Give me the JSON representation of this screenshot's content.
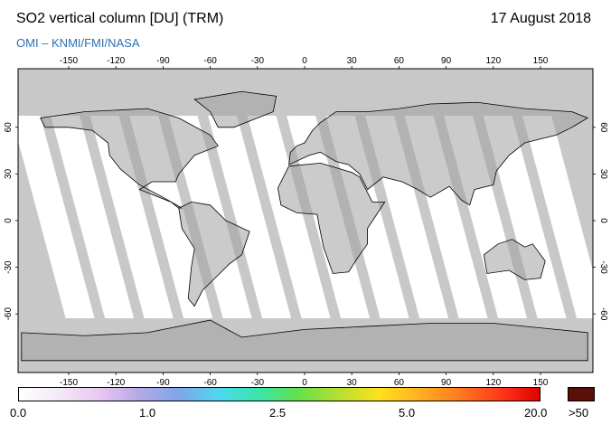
{
  "header": {
    "title": "SO2 vertical column [DU] (TRM)",
    "date": "17 August 2018",
    "credit": "OMI  –  KNMI/FMI/NASA"
  },
  "map": {
    "projection": "equirectangular",
    "lon_ticks": [
      "-150",
      "-120",
      "-90",
      "-60",
      "-30",
      "0",
      "30",
      "60",
      "90",
      "120",
      "150"
    ],
    "lat_ticks": [
      "60",
      "30",
      "0",
      "-30",
      "-60"
    ],
    "colors": {
      "no_data": "#c8c8c8",
      "swath": "#ffffff",
      "land_overlay": "#a0a0a0",
      "coastline": "#000000",
      "edge_gap": "#d8d8d8"
    }
  },
  "colorbar": {
    "labels": [
      "0.0",
      "1.0",
      "2.5",
      "5.0",
      "20.0",
      ">50"
    ],
    "stops": [
      "#ffffff",
      "#f3e9f7",
      "#e8c8f2",
      "#b6a8e6",
      "#7fa6e8",
      "#4fd8f0",
      "#39e6a8",
      "#66e04a",
      "#b8e030",
      "#ffe020",
      "#ffb020",
      "#ff7a20",
      "#ff3a1a",
      "#e00000"
    ],
    "over_color": "#5a0f08"
  }
}
